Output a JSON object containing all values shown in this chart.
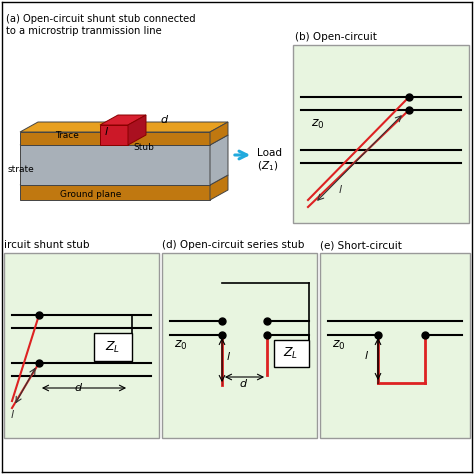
{
  "bg_color": "#ffffff",
  "panel_bg": "#e8f5e0",
  "panel_border": "#999999",
  "red_color": "#dd2222",
  "dark_green": "#336633",
  "top_text1": "(a) Open-circuit shunt stub connected",
  "top_text2": "to a microstrip tranmission line",
  "load_text1": "Load",
  "load_text2": "$(Z_1)$",
  "b_title": "(b) Open-circuit",
  "c_title": "ircuit shunt stub",
  "d_title": "(d) Open-circuit series stub",
  "e_title": "(e) Short-circuit",
  "orange": "#e8a020",
  "orange_dark": "#c07810",
  "gray_light": "#c8d0d8",
  "gray_dark": "#a8b0b8"
}
